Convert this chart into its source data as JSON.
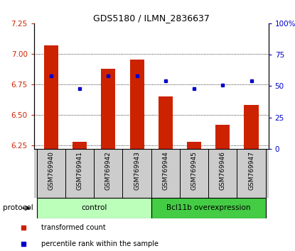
{
  "title": "GDS5180 / ILMN_2836637",
  "samples": [
    "GSM769940",
    "GSM769941",
    "GSM769942",
    "GSM769943",
    "GSM769944",
    "GSM769945",
    "GSM769946",
    "GSM769947"
  ],
  "bar_values": [
    7.07,
    6.28,
    6.88,
    6.95,
    6.65,
    6.28,
    6.42,
    6.58
  ],
  "bar_bottom": 6.22,
  "percentile_values": [
    58,
    48,
    58,
    58,
    54,
    48,
    51,
    54
  ],
  "ylim_left": [
    6.22,
    7.25
  ],
  "ylim_right": [
    0,
    100
  ],
  "yticks_left": [
    6.25,
    6.5,
    6.75,
    7.0,
    7.25
  ],
  "yticks_right": [
    0,
    25,
    50,
    75,
    100
  ],
  "ytick_labels_right": [
    "0",
    "25",
    "50",
    "75",
    "100%"
  ],
  "bar_color": "#cc2200",
  "dot_color": "#0000cc",
  "protocol_groups": [
    {
      "label": "control",
      "indices": [
        0,
        1,
        2,
        3
      ],
      "color": "#bbffbb"
    },
    {
      "label": "Bcl11b overexpression",
      "indices": [
        4,
        5,
        6,
        7
      ],
      "color": "#44cc44"
    }
  ],
  "protocol_label": "protocol",
  "legend_items": [
    {
      "label": "transformed count",
      "color": "#cc2200"
    },
    {
      "label": "percentile rank within the sample",
      "color": "#0000cc"
    }
  ],
  "left_tick_color": "#cc2200",
  "right_tick_color": "#0000cc",
  "tick_bg_color": "#cccccc",
  "bar_width": 0.5
}
